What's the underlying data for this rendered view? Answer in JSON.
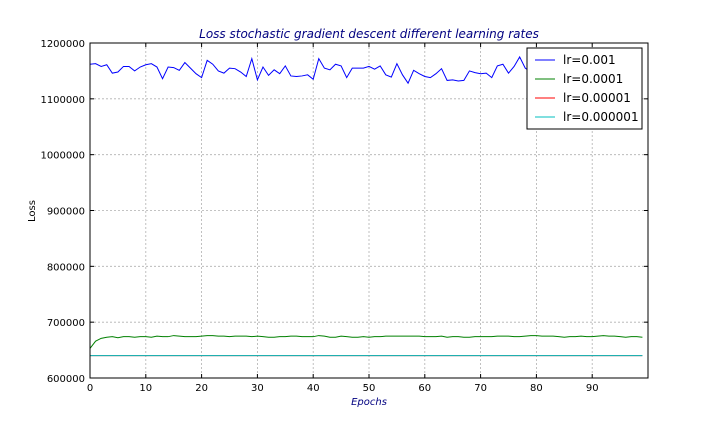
{
  "chart_data": {
    "type": "line",
    "title": "Loss stochastic gradient descent different learning rates",
    "xlabel": "Epochs",
    "ylabel": "Loss",
    "xlim": [
      0,
      100
    ],
    "ylim": [
      600000,
      1200000
    ],
    "xticks": [
      0,
      10,
      20,
      30,
      40,
      50,
      60,
      70,
      80,
      90
    ],
    "xtick_labels": [
      "0",
      "10",
      "20",
      "30",
      "40",
      "50",
      "60",
      "70",
      "80",
      "90"
    ],
    "yticks": [
      600000,
      700000,
      800000,
      900000,
      1000000,
      1100000,
      1200000
    ],
    "ytick_labels": [
      "600000",
      "700000",
      "800000",
      "900000",
      "1000000",
      "1100000",
      "1200000"
    ],
    "grid": true,
    "legend_position": "top-right",
    "x": [
      0,
      1,
      2,
      3,
      4,
      5,
      6,
      7,
      8,
      9,
      10,
      11,
      12,
      13,
      14,
      15,
      16,
      17,
      18,
      19,
      20,
      21,
      22,
      23,
      24,
      25,
      26,
      27,
      28,
      29,
      30,
      31,
      32,
      33,
      34,
      35,
      36,
      37,
      38,
      39,
      40,
      41,
      42,
      43,
      44,
      45,
      46,
      47,
      48,
      49,
      50,
      51,
      52,
      53,
      54,
      55,
      56,
      57,
      58,
      59,
      60,
      61,
      62,
      63,
      64,
      65,
      66,
      67,
      68,
      69,
      70,
      71,
      72,
      73,
      74,
      75,
      76,
      77,
      78,
      79,
      80,
      81,
      82,
      83,
      84,
      85,
      86,
      87,
      88,
      89,
      90,
      91,
      92,
      93,
      94,
      95,
      96,
      97,
      98,
      99
    ],
    "series": [
      {
        "name": "lr=0.001",
        "color": "#0000ff",
        "values": [
          1162000,
          1163000,
          1158000,
          1161000,
          1146000,
          1148000,
          1158000,
          1158000,
          1150000,
          1157000,
          1161000,
          1163000,
          1157000,
          1136000,
          1157000,
          1156000,
          1151000,
          1165000,
          1155000,
          1145000,
          1138000,
          1169000,
          1162000,
          1150000,
          1146000,
          1155000,
          1154000,
          1148000,
          1140000,
          1172000,
          1134000,
          1157000,
          1142000,
          1152000,
          1145000,
          1159000,
          1141000,
          1140000,
          1141000,
          1143000,
          1135000,
          1172000,
          1155000,
          1152000,
          1162000,
          1159000,
          1138000,
          1155000,
          1155000,
          1155000,
          1158000,
          1153000,
          1159000,
          1143000,
          1139000,
          1163000,
          1143000,
          1128000,
          1151000,
          1145000,
          1140000,
          1138000,
          1145000,
          1154000,
          1133000,
          1134000,
          1132000,
          1133000,
          1150000,
          1147000,
          1145000,
          1146000,
          1138000,
          1159000,
          1162000,
          1146000,
          1158000,
          1175000,
          1155000,
          1148000,
          1150000,
          1160000,
          1145000,
          1158000,
          1155000,
          1152000,
          1160000,
          1148000,
          1155000,
          1165000,
          1158000,
          1145000,
          1160000,
          1148000,
          1162000,
          1150000,
          1155000,
          1160000,
          1158000,
          1160000
        ]
      },
      {
        "name": "lr=0.0001",
        "color": "#008000",
        "values": [
          653000,
          666000,
          671000,
          673000,
          674000,
          672000,
          674000,
          674000,
          673000,
          674000,
          674000,
          673000,
          675000,
          674000,
          674000,
          676000,
          675000,
          674000,
          674000,
          674000,
          675000,
          676000,
          676000,
          675000,
          675000,
          674000,
          675000,
          675000,
          675000,
          674000,
          675000,
          674000,
          673000,
          673000,
          674000,
          674000,
          675000,
          675000,
          674000,
          674000,
          674000,
          676000,
          675000,
          673000,
          673000,
          675000,
          674000,
          673000,
          673000,
          674000,
          673000,
          674000,
          674000,
          675000,
          675000,
          675000,
          675000,
          675000,
          675000,
          675000,
          674000,
          674000,
          674000,
          675000,
          673000,
          674000,
          674000,
          673000,
          673000,
          674000,
          674000,
          674000,
          674000,
          675000,
          675000,
          675000,
          674000,
          674000,
          675000,
          676000,
          676000,
          675000,
          675000,
          675000,
          674000,
          673000,
          674000,
          674000,
          675000,
          674000,
          674000,
          675000,
          676000,
          675000,
          675000,
          674000,
          673000,
          674000,
          674000,
          673000
        ]
      },
      {
        "name": "lr=0.00001",
        "color": "#ff0000",
        "values": [
          640000,
          640000,
          640000,
          640000,
          640000,
          640000,
          640000,
          640000,
          640000,
          640000,
          640000,
          640000,
          640000,
          640000,
          640000,
          640000,
          640000,
          640000,
          640000,
          640000,
          640000,
          640000,
          640000,
          640000,
          640000,
          640000,
          640000,
          640000,
          640000,
          640000,
          640000,
          640000,
          640000,
          640000,
          640000,
          640000,
          640000,
          640000,
          640000,
          640000,
          640000,
          640000,
          640000,
          640000,
          640000,
          640000,
          640000,
          640000,
          640000,
          640000,
          640000,
          640000,
          640000,
          640000,
          640000,
          640000,
          640000,
          640000,
          640000,
          640000,
          640000,
          640000,
          640000,
          640000,
          640000,
          640000,
          640000,
          640000,
          640000,
          640000,
          640000,
          640000,
          640000,
          640000,
          640000,
          640000,
          640000,
          640000,
          640000,
          640000,
          640000,
          640000,
          640000,
          640000,
          640000,
          640000,
          640000,
          640000,
          640000,
          640000,
          640000,
          640000,
          640000,
          640000,
          640000,
          640000,
          640000,
          640000,
          640000,
          640000
        ]
      },
      {
        "name": "lr=0.000001",
        "color": "#00bfbf",
        "values": [
          640000,
          640000,
          640000,
          640000,
          640000,
          640000,
          640000,
          640000,
          640000,
          640000,
          640000,
          640000,
          640000,
          640000,
          640000,
          640000,
          640000,
          640000,
          640000,
          640000,
          640000,
          640000,
          640000,
          640000,
          640000,
          640000,
          640000,
          640000,
          640000,
          640000,
          640000,
          640000,
          640000,
          640000,
          640000,
          640000,
          640000,
          640000,
          640000,
          640000,
          640000,
          640000,
          640000,
          640000,
          640000,
          640000,
          640000,
          640000,
          640000,
          640000,
          640000,
          640000,
          640000,
          640000,
          640000,
          640000,
          640000,
          640000,
          640000,
          640000,
          640000,
          640000,
          640000,
          640000,
          640000,
          640000,
          640000,
          640000,
          640000,
          640000,
          640000,
          640000,
          640000,
          640000,
          640000,
          640000,
          640000,
          640000,
          640000,
          640000,
          640000,
          640000,
          640000,
          640000,
          640000,
          640000,
          640000,
          640000,
          640000,
          640000,
          640000,
          640000,
          640000,
          640000,
          640000,
          640000,
          640000,
          640000,
          640000,
          640000
        ]
      }
    ]
  }
}
